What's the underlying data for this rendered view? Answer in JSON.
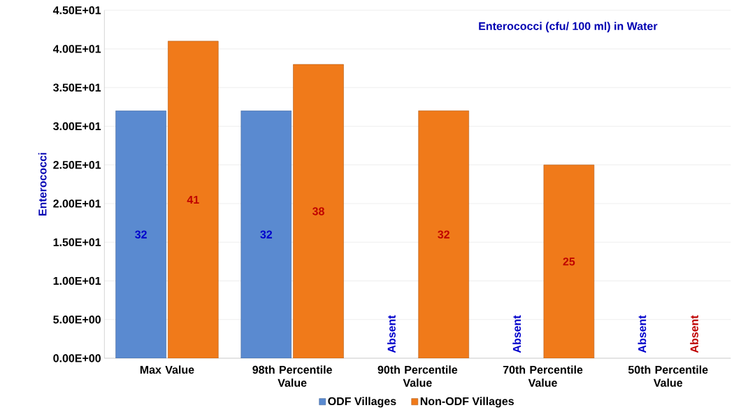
{
  "chart_data": {
    "type": "bar",
    "title": "Enterococci (cfu/ 100 ml) in Water",
    "ylabel": "Enterococci",
    "categories": [
      "Max Value",
      "98th Percentile Value",
      "90th Percentile Value",
      "70th Percentile Value",
      "50th Percentile Value"
    ],
    "series": [
      {
        "name": "ODF Villages",
        "color": "#5a8ad0",
        "values": [
          32,
          32,
          null,
          null,
          null
        ],
        "value_labels": [
          "32",
          "32",
          "Absent",
          "Absent",
          "Absent"
        ]
      },
      {
        "name": "Non-ODF Villages",
        "color": "#f07a1a",
        "values": [
          41,
          38,
          32,
          25,
          null
        ],
        "value_labels": [
          "41",
          "38",
          "32",
          "25",
          "Absent"
        ]
      }
    ],
    "ylim": [
      0,
      45
    ],
    "yticks": [
      {
        "value": 0,
        "label": "0.00E+00"
      },
      {
        "value": 5,
        "label": "5.00E+00"
      },
      {
        "value": 10,
        "label": "1.00E+01"
      },
      {
        "value": 15,
        "label": "1.50E+01"
      },
      {
        "value": 20,
        "label": "2.00E+01"
      },
      {
        "value": 25,
        "label": "2.50E+01"
      },
      {
        "value": 30,
        "label": "3.00E+01"
      },
      {
        "value": 35,
        "label": "3.50E+01"
      },
      {
        "value": 40,
        "label": "4.00E+01"
      },
      {
        "value": 45,
        "label": "4.50E+01"
      }
    ],
    "grid": "y",
    "legend": "bottom"
  }
}
